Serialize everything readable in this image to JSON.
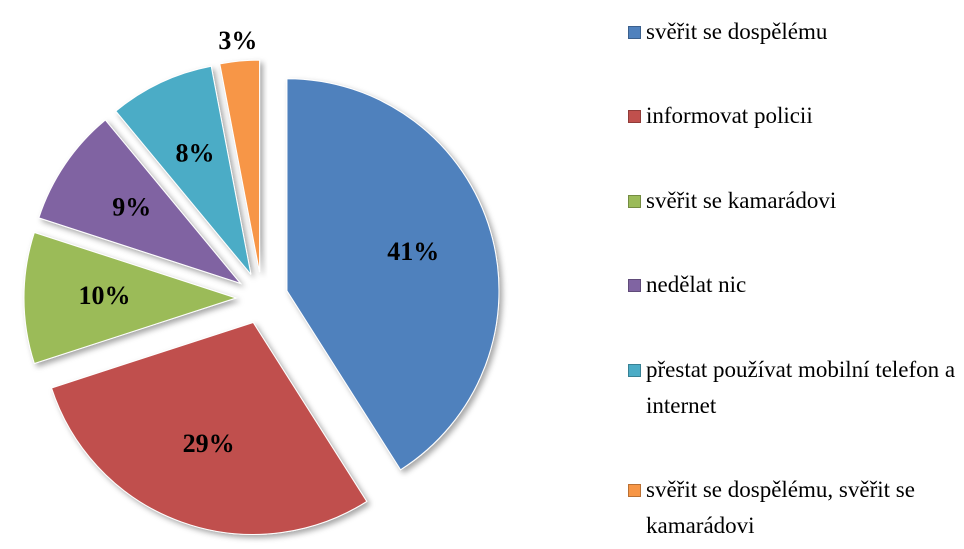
{
  "chart_data": {
    "type": "pie",
    "categories": [
      "svěřit se dospělému",
      "informovat policii",
      "svěřit se kamarádovi",
      "nedělat nic",
      "přestat používat mobilní telefon a internet",
      "svěřit se dospělému, svěřit se kamarádovi"
    ],
    "values": [
      41,
      29,
      10,
      9,
      8,
      3
    ],
    "value_labels": [
      "41%",
      "29%",
      "10%",
      "9%",
      "8%",
      "3%"
    ],
    "colors": [
      "#4f81bd",
      "#c0504d",
      "#9bbb59",
      "#8064a2",
      "#4bacc6",
      "#f79646"
    ],
    "legend": "right"
  }
}
